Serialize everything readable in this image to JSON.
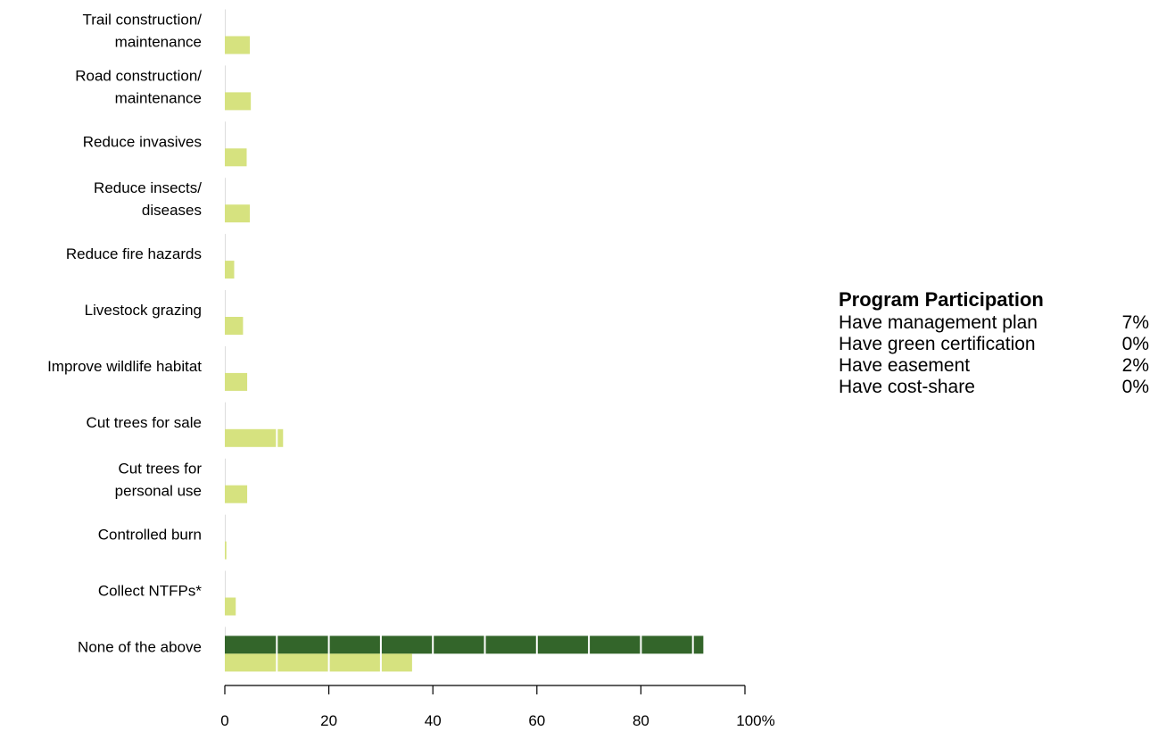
{
  "chart_data": {
    "type": "bar",
    "orientation": "horizontal",
    "categories": [
      [
        "Trail construction/",
        "maintenance"
      ],
      [
        "Road construction/",
        "maintenance"
      ],
      [
        "Reduce invasives"
      ],
      [
        "Reduce insects/",
        "diseases"
      ],
      [
        "Reduce fire hazards"
      ],
      [
        "Livestock grazing"
      ],
      [
        "Improve wildlife habitat"
      ],
      [
        "Cut trees for sale"
      ],
      [
        "Cut trees for",
        "personal use"
      ],
      [
        "Controlled burn"
      ],
      [
        "Collect NTFPs*"
      ],
      [
        "None of the above"
      ]
    ],
    "series": [
      {
        "color": "#33652a",
        "values": [
          0,
          0,
          0,
          0,
          0,
          0,
          0,
          0,
          0,
          0,
          0,
          92
        ]
      },
      {
        "color": "#d6e27f",
        "values": [
          4.8,
          5.0,
          4.2,
          4.8,
          1.8,
          3.5,
          4.3,
          11.2,
          4.3,
          0.3,
          2.1,
          36
        ]
      }
    ],
    "xlim": [
      0,
      100
    ],
    "xticks": [
      "0",
      "20",
      "40",
      "60",
      "80",
      "100%"
    ],
    "grid": "white vertical lines every 10 units drawn over bars"
  },
  "program": {
    "title": "Program Participation",
    "rows": [
      {
        "label": "Have management plan",
        "value": "7%"
      },
      {
        "label": "Have green certification",
        "value": "0%"
      },
      {
        "label": "Have easement",
        "value": "2%"
      },
      {
        "label": "Have cost-share",
        "value": "0%"
      }
    ]
  }
}
